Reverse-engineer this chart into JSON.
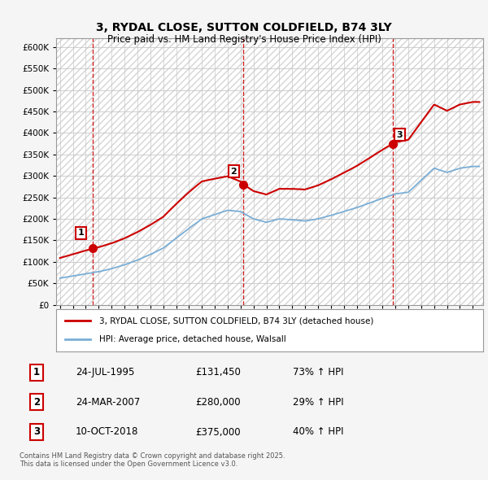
{
  "title_line1": "3, RYDAL CLOSE, SUTTON COLDFIELD, B74 3LY",
  "title_line2": "Price paid vs. HM Land Registry's House Price Index (HPI)",
  "ylim": [
    0,
    620000
  ],
  "yticks": [
    0,
    50000,
    100000,
    150000,
    200000,
    250000,
    300000,
    350000,
    400000,
    450000,
    500000,
    550000,
    600000
  ],
  "xlim_start": 1992.7,
  "xlim_end": 2025.8,
  "bg_color": "#f5f5f5",
  "plot_bg_color": "#ffffff",
  "grid_color": "#c8c8c8",
  "red_line_color": "#cc0000",
  "blue_line_color": "#7aaed6",
  "vline_color": "#cc0000",
  "legend_label_red": "3, RYDAL CLOSE, SUTTON COLDFIELD, B74 3LY (detached house)",
  "legend_label_blue": "HPI: Average price, detached house, Walsall",
  "sales": [
    {
      "num": 1,
      "date_year": 1995.56,
      "price": 131450,
      "pct": "73%",
      "date_str": "24-JUL-1995",
      "price_str": "£131,450"
    },
    {
      "num": 2,
      "date_year": 2007.22,
      "price": 280000,
      "pct": "29%",
      "date_str": "24-MAR-2007",
      "price_str": "£280,000"
    },
    {
      "num": 3,
      "date_year": 2018.78,
      "price": 375000,
      "pct": "40%",
      "date_str": "10-OCT-2018",
      "price_str": "£375,000"
    }
  ],
  "footer_line1": "Contains HM Land Registry data © Crown copyright and database right 2025.",
  "footer_line2": "This data is licensed under the Open Government Licence v3.0.",
  "years_hpi": [
    1993,
    1994,
    1995,
    1996,
    1997,
    1998,
    1999,
    2000,
    2001,
    2002,
    2003,
    2004,
    2005,
    2006,
    2007,
    2008,
    2009,
    2010,
    2011,
    2012,
    2013,
    2014,
    2015,
    2016,
    2017,
    2018,
    2019,
    2020,
    2021,
    2022,
    2023,
    2024,
    2025
  ],
  "hpi_values": [
    62000,
    67000,
    72000,
    77000,
    84000,
    93000,
    104000,
    117000,
    132000,
    155000,
    178000,
    200000,
    210000,
    220000,
    217000,
    200000,
    192000,
    200000,
    198000,
    195000,
    200000,
    208000,
    217000,
    226000,
    237000,
    248000,
    258000,
    262000,
    290000,
    318000,
    308000,
    318000,
    322000
  ]
}
